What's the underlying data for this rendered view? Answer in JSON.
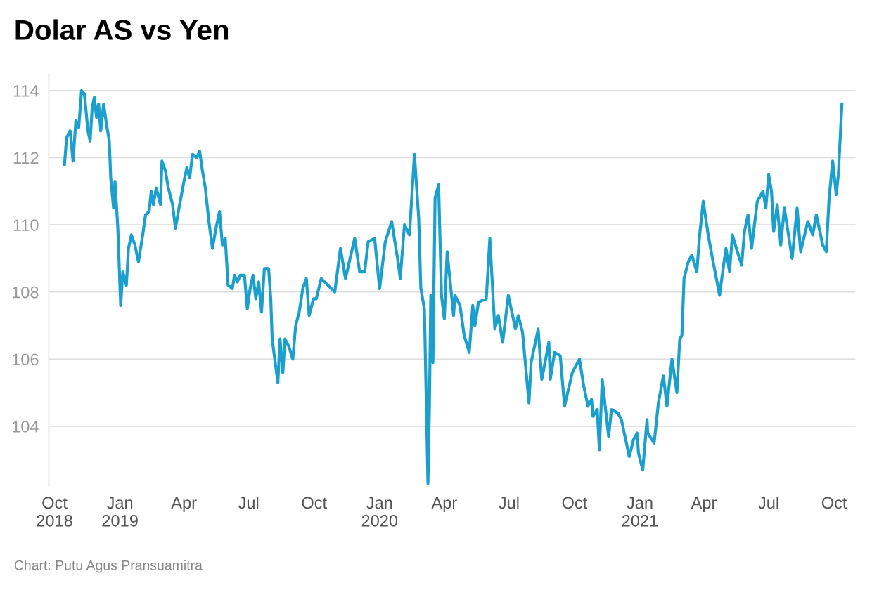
{
  "chart_data": {
    "type": "line",
    "title": "Dolar AS vs Yen",
    "annotations": [
      "Chart: Putu Agus Pransuamitra"
    ],
    "x": [
      "2018-10-15",
      "2018-10-18",
      "2018-10-23",
      "2018-10-27",
      "2018-10-31",
      "2018-11-04",
      "2018-11-08",
      "2018-11-12",
      "2018-11-17",
      "2018-11-20",
      "2018-11-23",
      "2018-11-26",
      "2018-11-29",
      "2018-12-02",
      "2018-12-05",
      "2018-12-09",
      "2018-12-13",
      "2018-12-17",
      "2018-12-19",
      "2018-12-23",
      "2018-12-25",
      "2018-12-29",
      "2019-01-02",
      "2019-01-05",
      "2019-01-10",
      "2019-01-13",
      "2019-01-17",
      "2019-01-22",
      "2019-01-27",
      "2019-02-02",
      "2019-02-06",
      "2019-02-11",
      "2019-02-14",
      "2019-02-17",
      "2019-02-21",
      "2019-02-27",
      "2019-03-01",
      "2019-03-06",
      "2019-03-10",
      "2019-03-16",
      "2019-03-20",
      "2019-03-25",
      "2019-04-01",
      "2019-04-05",
      "2019-04-09",
      "2019-04-13",
      "2019-04-19",
      "2019-04-23",
      "2019-04-27",
      "2019-05-01",
      "2019-05-06",
      "2019-05-11",
      "2019-05-16",
      "2019-05-21",
      "2019-05-25",
      "2019-05-29",
      "2019-06-02",
      "2019-06-08",
      "2019-06-11",
      "2019-06-15",
      "2019-06-19",
      "2019-06-25",
      "2019-06-29",
      "2019-07-03",
      "2019-07-07",
      "2019-07-11",
      "2019-07-15",
      "2019-07-19",
      "2019-07-23",
      "2019-07-29",
      "2019-08-01",
      "2019-08-03",
      "2019-08-06",
      "2019-08-11",
      "2019-08-14",
      "2019-08-18",
      "2019-08-21",
      "2019-08-26",
      "2019-09-01",
      "2019-09-05",
      "2019-09-10",
      "2019-09-15",
      "2019-09-20",
      "2019-09-24",
      "2019-09-30",
      "2019-10-04",
      "2019-10-11",
      "2019-10-30",
      "2019-11-07",
      "2019-11-14",
      "2019-11-27",
      "2019-12-04",
      "2019-12-11",
      "2019-12-16",
      "2019-12-25",
      "2020-01-01",
      "2020-01-09",
      "2020-01-18",
      "2020-01-27",
      "2020-01-30",
      "2020-02-05",
      "2020-02-12",
      "2020-02-19",
      "2020-02-25",
      "2020-02-28",
      "2020-03-04",
      "2020-03-09",
      "2020-03-11",
      "2020-03-13",
      "2020-03-16",
      "2020-03-19",
      "2020-03-24",
      "2020-03-28",
      "2020-04-01",
      "2020-04-05",
      "2020-04-14",
      "2020-04-16",
      "2020-04-23",
      "2020-04-29",
      "2020-05-06",
      "2020-05-11",
      "2020-05-14",
      "2020-05-19",
      "2020-05-30",
      "2020-06-04",
      "2020-06-11",
      "2020-06-16",
      "2020-06-22",
      "2020-06-30",
      "2020-07-10",
      "2020-07-14",
      "2020-07-20",
      "2020-07-29",
      "2020-08-01",
      "2020-08-11",
      "2020-08-16",
      "2020-08-26",
      "2020-08-28",
      "2020-09-03",
      "2020-09-11",
      "2020-09-17",
      "2020-09-28",
      "2020-10-08",
      "2020-10-14",
      "2020-10-20",
      "2020-10-25",
      "2020-10-27",
      "2020-11-02",
      "2020-11-05",
      "2020-11-09",
      "2020-11-18",
      "2020-11-22",
      "2020-12-01",
      "2020-12-06",
      "2020-12-17",
      "2020-12-23",
      "2020-12-28",
      "2020-12-30",
      "2021-01-05",
      "2021-01-11",
      "2021-01-12",
      "2021-01-21",
      "2021-01-27",
      "2021-02-03",
      "2021-02-08",
      "2021-02-15",
      "2021-02-22",
      "2021-02-26",
      "2021-03-01",
      "2021-03-04",
      "2021-03-10",
      "2021-03-15",
      "2021-03-22",
      "2021-03-26",
      "2021-03-31",
      "2021-04-07",
      "2021-04-13",
      "2021-04-23",
      "2021-04-28",
      "2021-05-02",
      "2021-05-07",
      "2021-05-11",
      "2021-05-18",
      "2021-05-24",
      "2021-05-28",
      "2021-06-02",
      "2021-06-07",
      "2021-06-15",
      "2021-06-23",
      "2021-06-27",
      "2021-07-01",
      "2021-07-05",
      "2021-07-08",
      "2021-07-13",
      "2021-07-18",
      "2021-07-23",
      "2021-08-03",
      "2021-08-10",
      "2021-08-15",
      "2021-08-25",
      "2021-09-01",
      "2021-09-06",
      "2021-09-15",
      "2021-09-20",
      "2021-09-24",
      "2021-09-29",
      "2021-10-04",
      "2021-10-07",
      "2021-10-12"
    ],
    "series": [
      {
        "color": "#1b9fcc",
        "values": [
          111.8,
          112.6,
          112.8,
          111.9,
          113.1,
          112.9,
          114.0,
          113.9,
          112.8,
          112.5,
          113.5,
          113.8,
          113.2,
          113.6,
          112.8,
          113.6,
          113.0,
          112.5,
          111.4,
          110.5,
          111.3,
          109.9,
          107.6,
          108.6,
          108.2,
          109.3,
          109.7,
          109.4,
          108.9,
          109.7,
          110.3,
          110.4,
          111.0,
          110.6,
          111.1,
          110.6,
          111.9,
          111.6,
          111.1,
          110.6,
          109.9,
          110.5,
          111.3,
          111.7,
          111.4,
          112.1,
          112.0,
          112.2,
          111.6,
          111.1,
          110.1,
          109.3,
          109.9,
          110.4,
          109.4,
          109.6,
          108.2,
          108.1,
          108.5,
          108.3,
          108.5,
          108.5,
          107.5,
          108.1,
          108.5,
          107.8,
          108.3,
          107.4,
          108.7,
          108.7,
          107.8,
          106.6,
          106.1,
          105.3,
          106.6,
          105.6,
          106.6,
          106.4,
          106.0,
          107.0,
          107.4,
          108.1,
          108.4,
          107.3,
          107.8,
          107.8,
          108.4,
          108.0,
          109.3,
          108.4,
          109.6,
          108.6,
          108.6,
          109.5,
          109.6,
          108.1,
          109.5,
          110.1,
          108.9,
          108.4,
          110.0,
          109.7,
          112.1,
          110.2,
          108.1,
          107.5,
          102.3,
          104.5,
          107.9,
          105.9,
          110.8,
          111.2,
          107.9,
          107.2,
          109.2,
          107.3,
          107.9,
          107.6,
          106.7,
          106.2,
          107.6,
          107.0,
          107.7,
          107.8,
          109.6,
          106.9,
          107.3,
          106.5,
          107.9,
          106.9,
          107.3,
          106.8,
          104.7,
          105.9,
          106.9,
          105.4,
          106.5,
          105.4,
          106.2,
          106.1,
          104.6,
          105.6,
          106.0,
          105.2,
          104.6,
          104.8,
          104.3,
          104.5,
          103.3,
          105.4,
          103.7,
          104.5,
          104.4,
          104.2,
          103.1,
          103.6,
          103.8,
          103.2,
          102.7,
          104.2,
          103.8,
          103.5,
          104.7,
          105.5,
          104.6,
          106.0,
          105.0,
          106.6,
          106.7,
          108.4,
          108.9,
          109.1,
          108.6,
          109.7,
          110.7,
          109.7,
          109.0,
          107.9,
          108.7,
          109.3,
          108.6,
          109.7,
          109.2,
          108.8,
          109.8,
          110.3,
          109.3,
          110.7,
          111.0,
          110.5,
          111.5,
          111.0,
          109.8,
          110.6,
          109.4,
          110.5,
          109.0,
          110.5,
          109.2,
          110.1,
          109.7,
          110.3,
          109.4,
          109.2,
          110.8,
          111.9,
          110.9,
          111.5,
          113.6
        ]
      }
    ],
    "xlim": [
      "2018-09-23",
      "2021-10-31"
    ],
    "xticks": [
      {
        "value": "2018-10-01",
        "label": "Oct\n2018"
      },
      {
        "value": "2019-01-01",
        "label": "Jan\n2019"
      },
      {
        "value": "2019-04-01",
        "label": "Apr"
      },
      {
        "value": "2019-07-01",
        "label": "Jul"
      },
      {
        "value": "2019-10-01",
        "label": "Oct"
      },
      {
        "value": "2020-01-01",
        "label": "Jan\n2020"
      },
      {
        "value": "2020-04-01",
        "label": "Apr"
      },
      {
        "value": "2020-07-01",
        "label": "Jul"
      },
      {
        "value": "2020-10-01",
        "label": "Oct"
      },
      {
        "value": "2021-01-01",
        "label": "Jan\n2021"
      },
      {
        "value": "2021-04-01",
        "label": "Apr"
      },
      {
        "value": "2021-07-01",
        "label": "Jul"
      },
      {
        "value": "2021-10-01",
        "label": "Oct"
      }
    ],
    "ylim": [
      102.2,
      114.5
    ],
    "yticks": [
      104,
      106,
      108,
      110,
      112,
      114
    ],
    "grid": "y",
    "legend": false,
    "marker": "none",
    "line_style": "solid"
  }
}
